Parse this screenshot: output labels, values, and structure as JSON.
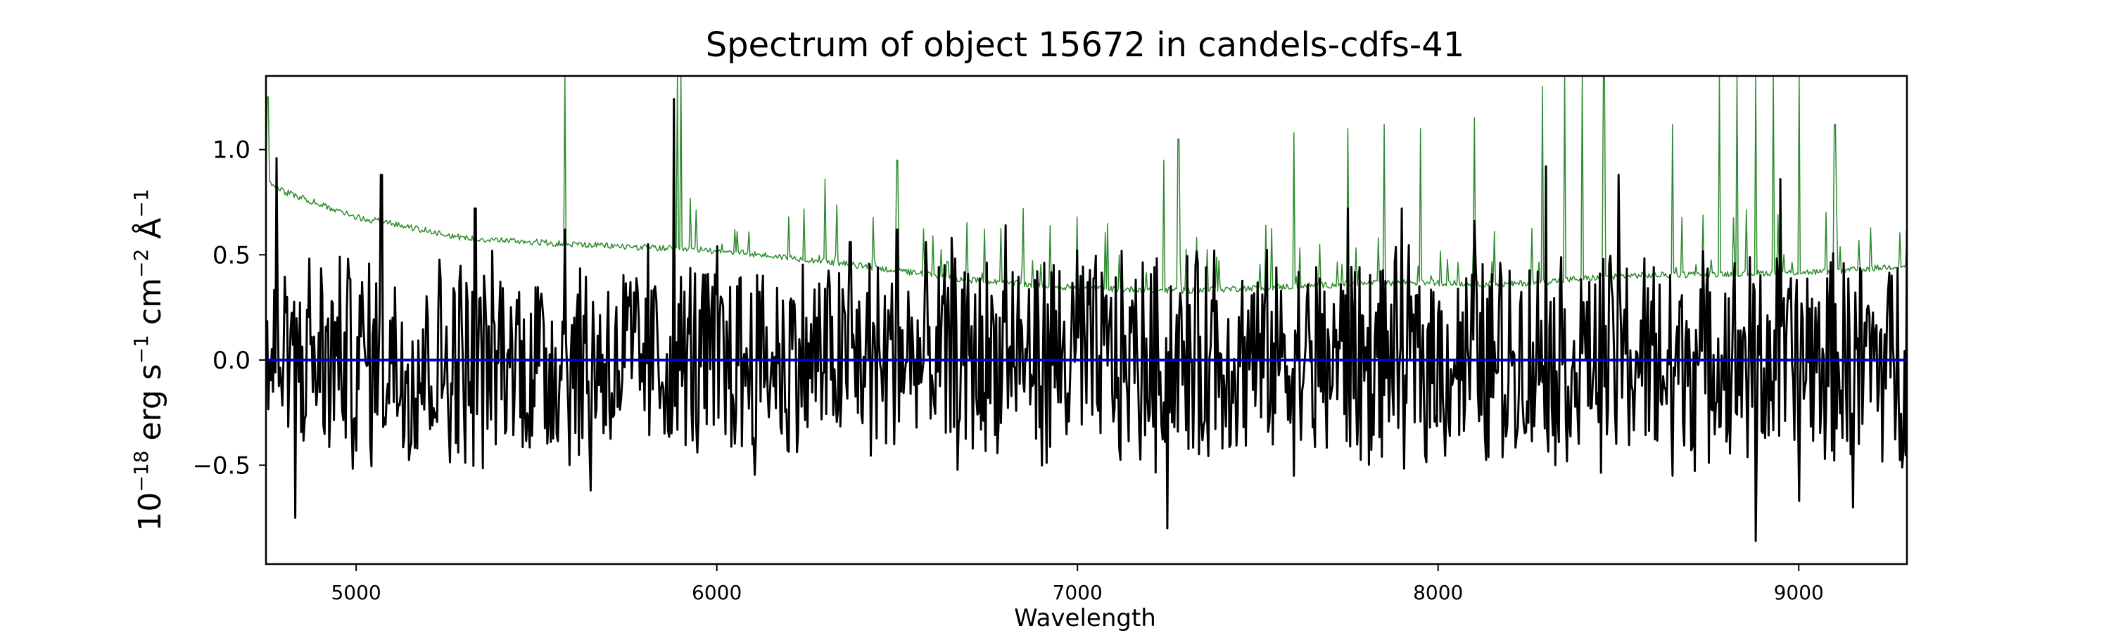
{
  "chart_data": {
    "type": "line",
    "title": "Spectrum of object 15672 in candels-cdfs-41",
    "xlabel": "Wavelength",
    "ylabel": {
      "base": "10",
      "exp1": "−18",
      "u1": " erg s",
      "exp2": "−1",
      "u2": " cm",
      "exp3": "−2",
      "u3": " Å",
      "exp4": "−1"
    },
    "xlim": [
      4750,
      9300
    ],
    "ylim": [
      -0.97,
      1.35
    ],
    "xticks": [
      5000,
      6000,
      7000,
      8000,
      9000
    ],
    "xtick_labels": [
      "5000",
      "6000",
      "7000",
      "8000",
      "9000"
    ],
    "yticks": [
      -0.5,
      0.0,
      0.5,
      1.0
    ],
    "ytick_labels": [
      "−0.5",
      "0.0",
      "0.5",
      "1.0"
    ],
    "grid": false,
    "series": [
      {
        "role": "model",
        "color": "#2e8b2e",
        "baseline": {
          "x": [
            4750,
            4800,
            5000,
            5300,
            5600,
            6000,
            6300,
            6700,
            7000,
            7300,
            7600,
            7900,
            8200,
            8500,
            8800,
            9100,
            9300
          ],
          "y": [
            0.85,
            0.8,
            0.68,
            0.58,
            0.55,
            0.52,
            0.47,
            0.38,
            0.34,
            0.33,
            0.35,
            0.37,
            0.36,
            0.4,
            0.41,
            0.42,
            0.45
          ]
        },
        "peaks": {
          "x": [
            4755,
            5580,
            5890,
            5900,
            6050,
            6200,
            6300,
            6500,
            6850,
            7000,
            7240,
            7280,
            7600,
            7750,
            7850,
            7950,
            8100,
            8290,
            8350,
            8400,
            8460,
            8650,
            8780,
            8830,
            8880,
            8930,
            9000,
            9100,
            9300
          ],
          "y": [
            1.25,
            1.38,
            1.38,
            1.35,
            0.62,
            0.68,
            0.86,
            0.95,
            0.72,
            0.68,
            0.95,
            1.05,
            1.08,
            1.1,
            1.12,
            1.1,
            1.15,
            1.3,
            1.38,
            1.38,
            1.38,
            1.12,
            1.38,
            1.38,
            1.38,
            1.38,
            1.38,
            1.12,
            0.62
          ]
        }
      },
      {
        "role": "observed",
        "color": "#000000",
        "noise_amplitude": 0.55,
        "peaks": {
          "x": [
            4780,
            4830,
            5070,
            5330,
            5580,
            5650,
            5810,
            5880,
            6000,
            6180,
            6370,
            6500,
            6650,
            6800,
            7000,
            7250,
            7380,
            7600,
            7750,
            7900,
            8100,
            8300,
            8500,
            8650,
            8880,
            8950,
            9000,
            9150,
            9300
          ],
          "y": [
            0.96,
            -0.75,
            0.88,
            0.72,
            0.62,
            -0.62,
            0.55,
            1.24,
            0.54,
            -0.35,
            0.56,
            0.62,
            0.58,
            0.64,
            0.52,
            -0.8,
            0.52,
            -0.55,
            0.72,
            0.72,
            0.66,
            0.92,
            0.88,
            -0.55,
            -0.86,
            0.86,
            -0.67,
            -0.7,
            0.62
          ]
        }
      },
      {
        "role": "zero",
        "color": "#0000cc",
        "x": [
          4750,
          9300
        ],
        "y": [
          0,
          0
        ]
      }
    ]
  }
}
